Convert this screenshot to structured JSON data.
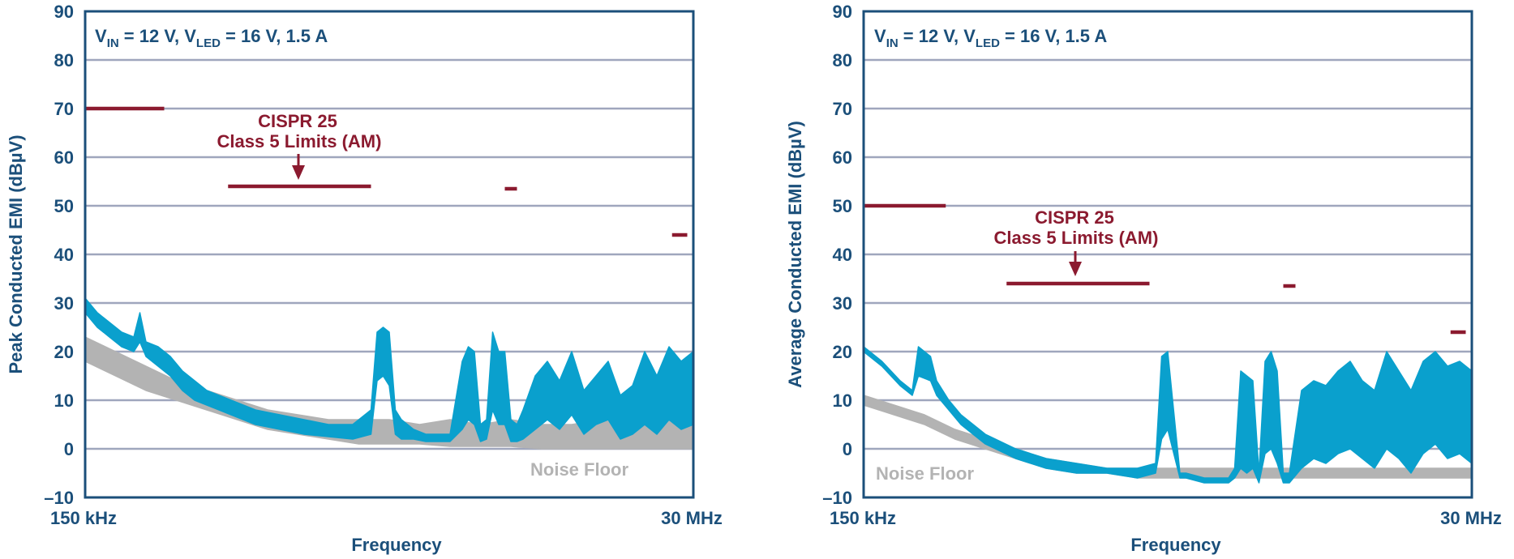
{
  "colors": {
    "frame": "#1b4f7a",
    "grid": "#9fa6bd",
    "limit": "#8b1a2f",
    "emi": "#0aa0cd",
    "noise": "#b3b3b3"
  },
  "chart_data": [
    {
      "type": "line",
      "note": {
        "v1": "V",
        "s1": "IN",
        "t1": " = 12 V, V",
        "s2": "LED",
        "t2": " = 16 V, 1.5 A"
      },
      "ylabel": "Peak Conducted EMI (dBµV)",
      "xlabel": "Frequency",
      "x_tick_labels": [
        "150 kHz",
        "30 MHz"
      ],
      "ylim": [
        -10,
        90
      ],
      "yticks": [
        90,
        80,
        70,
        60,
        50,
        40,
        30,
        20,
        10,
        0,
        -10
      ],
      "y_tick_labels": [
        "90",
        "80",
        "70",
        "60",
        "50",
        "40",
        "30",
        "20",
        "10",
        "0",
        "–10"
      ],
      "x_unit": "fraction of log span 150 kHz–30 MHz",
      "limit_label": [
        "CISPR 25",
        "Class 5 Limits (AM)"
      ],
      "noise_label": "Noise Floor",
      "limits": [
        {
          "x0": 0.0,
          "x1": 0.13,
          "y": 70
        },
        {
          "x0": 0.235,
          "x1": 0.47,
          "y": 54
        },
        {
          "x0": 0.69,
          "x1": 0.71,
          "y": 53.5
        },
        {
          "x0": 0.965,
          "x1": 0.99,
          "y": 44
        }
      ],
      "emi_band": {
        "x": [
          0.0,
          0.02,
          0.04,
          0.06,
          0.08,
          0.09,
          0.1,
          0.12,
          0.14,
          0.16,
          0.18,
          0.2,
          0.24,
          0.28,
          0.32,
          0.36,
          0.4,
          0.44,
          0.47,
          0.48,
          0.49,
          0.5,
          0.51,
          0.52,
          0.53,
          0.54,
          0.56,
          0.6,
          0.62,
          0.63,
          0.64,
          0.65,
          0.66,
          0.67,
          0.68,
          0.69,
          0.7,
          0.71,
          0.72,
          0.74,
          0.76,
          0.78,
          0.8,
          0.82,
          0.84,
          0.86,
          0.88,
          0.9,
          0.92,
          0.94,
          0.96,
          0.98,
          1.0
        ],
        "high": [
          31,
          28,
          26,
          24,
          23,
          28,
          22,
          21,
          19,
          16,
          14,
          12,
          10,
          8,
          7,
          6,
          5,
          5,
          8,
          24,
          25,
          24,
          8,
          6,
          5,
          4,
          3,
          3,
          18,
          21,
          20,
          5,
          6,
          24,
          20,
          20,
          6,
          5,
          8,
          15,
          18,
          14,
          20,
          12,
          15,
          18,
          11,
          13,
          20,
          15,
          21,
          18,
          20
        ],
        "low": [
          28,
          25,
          23,
          21,
          20,
          22,
          19,
          17,
          15,
          12,
          10,
          9,
          7,
          5,
          4,
          3,
          2.5,
          2,
          3,
          14,
          15,
          13,
          3,
          2,
          2,
          2,
          1.5,
          1.5,
          4,
          6,
          5,
          1.5,
          2,
          8,
          5,
          5,
          1.5,
          1.5,
          2,
          4,
          6,
          4,
          7,
          3,
          5,
          6,
          2,
          3,
          5,
          3,
          6,
          4,
          5
        ]
      },
      "noise_band": {
        "x": [
          0.0,
          0.05,
          0.1,
          0.15,
          0.2,
          0.25,
          0.3,
          0.35,
          0.4,
          0.45,
          0.5,
          0.55,
          0.6,
          0.65,
          0.7,
          0.75,
          0.8,
          0.85,
          0.9,
          0.95,
          1.0
        ],
        "high": [
          23,
          20,
          17,
          14,
          12,
          10,
          8,
          7,
          6,
          6,
          6,
          5,
          6,
          5,
          6,
          5,
          5,
          6,
          5,
          6,
          6
        ],
        "low": [
          18,
          15,
          12,
          10,
          8,
          6,
          4,
          3,
          2,
          1,
          1,
          1,
          0.5,
          0.5,
          0.5,
          0,
          0,
          0,
          0,
          0,
          0
        ]
      }
    },
    {
      "type": "line",
      "note": {
        "v1": "V",
        "s1": "IN",
        "t1": " = 12 V, V",
        "s2": "LED",
        "t2": " = 16 V, 1.5 A"
      },
      "ylabel": "Average Conducted EMI (dBµV)",
      "xlabel": "Frequency",
      "x_tick_labels": [
        "150 kHz",
        "30 MHz"
      ],
      "ylim": [
        -10,
        90
      ],
      "yticks": [
        90,
        80,
        70,
        60,
        50,
        40,
        30,
        20,
        10,
        0,
        -10
      ],
      "y_tick_labels": [
        "90",
        "80",
        "70",
        "60",
        "50",
        "40",
        "30",
        "20",
        "10",
        "0",
        "–10"
      ],
      "x_unit": "fraction of log span 150 kHz–30 MHz",
      "limit_label": [
        "CISPR 25",
        "Class 5 Limits (AM)"
      ],
      "noise_label": "Noise Floor",
      "limits": [
        {
          "x0": 0.0,
          "x1": 0.135,
          "y": 50
        },
        {
          "x0": 0.235,
          "x1": 0.47,
          "y": 34
        },
        {
          "x0": 0.69,
          "x1": 0.71,
          "y": 33.5
        },
        {
          "x0": 0.965,
          "x1": 0.99,
          "y": 24
        }
      ],
      "emi_band": {
        "x": [
          0.0,
          0.03,
          0.06,
          0.08,
          0.09,
          0.11,
          0.12,
          0.14,
          0.16,
          0.2,
          0.25,
          0.3,
          0.35,
          0.4,
          0.45,
          0.48,
          0.49,
          0.5,
          0.52,
          0.53,
          0.56,
          0.6,
          0.61,
          0.62,
          0.63,
          0.64,
          0.65,
          0.66,
          0.67,
          0.68,
          0.69,
          0.7,
          0.72,
          0.74,
          0.76,
          0.78,
          0.8,
          0.82,
          0.84,
          0.86,
          0.88,
          0.9,
          0.92,
          0.94,
          0.96,
          0.98,
          1.0
        ],
        "high": [
          21,
          18,
          14,
          12,
          21,
          19,
          14,
          10,
          7,
          3,
          0,
          -2,
          -3,
          -4,
          -4,
          -3,
          19,
          20,
          -5,
          -5,
          -6,
          -6,
          -4,
          16,
          15,
          14,
          -5,
          18,
          20,
          16,
          -5,
          -5,
          12,
          14,
          13,
          16,
          18,
          14,
          12,
          20,
          16,
          12,
          18,
          20,
          17,
          18,
          16
        ],
        "low": [
          20,
          17,
          13,
          11,
          15,
          14,
          11,
          8,
          5,
          1,
          -2,
          -4,
          -5,
          -5,
          -6,
          -5,
          2,
          4,
          -6,
          -6,
          -7,
          -7,
          -6,
          -4,
          -5,
          -4,
          -7,
          -1,
          0,
          -3,
          -7,
          -7,
          -4,
          -2,
          -3,
          -1,
          0,
          -2,
          -4,
          0,
          -2,
          -5,
          -1,
          1,
          -2,
          -1,
          -3
        ]
      },
      "noise_band": {
        "x": [
          0.0,
          0.05,
          0.1,
          0.15,
          0.2,
          0.25,
          0.3,
          0.35,
          0.4,
          0.45,
          0.5,
          0.55,
          0.6,
          0.65,
          0.7,
          0.75,
          0.8,
          0.85,
          0.9,
          0.95,
          1.0
        ],
        "high": [
          11,
          9,
          7,
          4,
          2,
          0,
          -2,
          -3,
          -4,
          -4,
          -4,
          -4,
          -4,
          -4,
          -4,
          -4,
          -4,
          -4,
          -4,
          -4,
          -4
        ],
        "low": [
          9,
          7,
          5,
          2,
          0,
          -2,
          -4,
          -5,
          -5,
          -6,
          -6,
          -6,
          -6,
          -6,
          -6,
          -6,
          -6,
          -6,
          -6,
          -6,
          -6
        ]
      }
    }
  ]
}
